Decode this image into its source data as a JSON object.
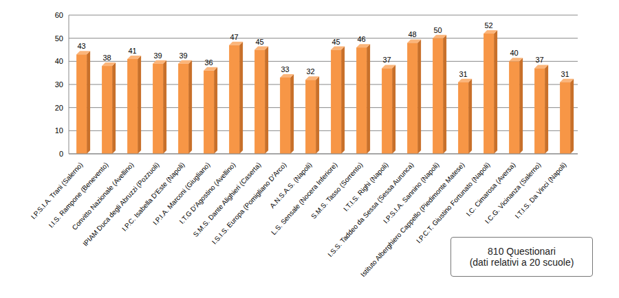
{
  "chart_data": {
    "type": "bar",
    "categories": [
      "I.P.S.I.A. Trani (Salerno)",
      "I.I.S. Rampone (Benevento)",
      "Convitto Nazionale (Avellino)",
      "IPIAM Duca degli Abruzzi (Pozzuoli)",
      "I.P.C. Isabella D'Este (Napoli)",
      "I.P.I.A. Marconi (Giugliano)",
      "I.T.G D'Agostino (Avellino)",
      "S.M.S. Dante Alighieri (Caserta)",
      "I.S.I.S. Europa (Pomigliano D'Arco)",
      "A.N.S.A.S. (Napoli)",
      "L.S. Sensale (Nocera Inferiore)",
      "S.M.S. Tasso (Sorrento)",
      "I.T.I.S. Righi (Napoli)",
      "I.S.S. Taddeo da Sessa (Sessa Aurunca)",
      "I.P.S.I.A. Sannino (Napoli)",
      "Istituto Alberghiero Cappello (Piedimonte Matese)",
      "I.P.C.T. Giustino Fortunato (Napoli)",
      "I.C. Cimarosa (Aversa)",
      "I.C.G. Vicinanza (Salerno)",
      "I.T.I.S. Da Vinci (Napoli)"
    ],
    "values": [
      43,
      38,
      41,
      39,
      39,
      36,
      47,
      45,
      33,
      32,
      45,
      46,
      37,
      48,
      50,
      31,
      52,
      40,
      37,
      31
    ],
    "color": "#f79646",
    "ylim": [
      0,
      60
    ],
    "yticks": [
      0,
      10,
      20,
      30,
      40,
      50,
      60
    ],
    "grid": true,
    "data_labels": true,
    "annotations": [
      "810 Questionari",
      "(dati relativi a 20 scuole)"
    ]
  }
}
